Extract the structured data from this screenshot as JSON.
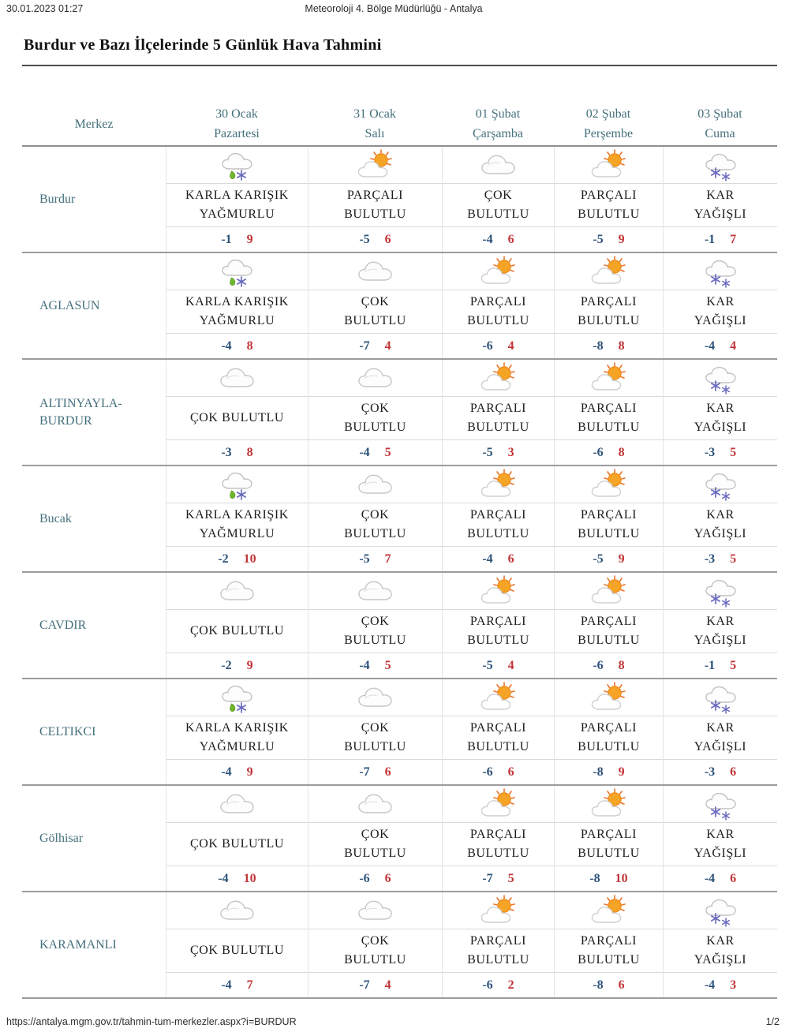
{
  "print_header": {
    "datetime": "30.01.2023 01:27",
    "doc_title": "Meteoroloji 4. Bölge Müdürlüğü - Antalya"
  },
  "page_title": "Burdur ve Bazı İlçelerinde 5 Günlük Hava Tahmini",
  "table": {
    "merkez_header": "Merkez",
    "day_headers": [
      {
        "date": "30 Ocak",
        "day": "Pazartesi"
      },
      {
        "date": "31 Ocak",
        "day": "Salı"
      },
      {
        "date": "01 Şubat",
        "day": "Çarşamba"
      },
      {
        "date": "02 Şubat",
        "day": "Perşembe"
      },
      {
        "date": "03 Şubat",
        "day": "Cuma"
      }
    ],
    "rows": [
      {
        "merkez": "Burdur",
        "cells": [
          {
            "icon": "sleet-icon",
            "condition": "KARLA KARIŞIK YAĞMURLU",
            "min": "-1",
            "max": "9"
          },
          {
            "icon": "partly-cloudy-icon",
            "condition": "PARÇALI BULUTLU",
            "min": "-5",
            "max": "6"
          },
          {
            "icon": "cloudy-icon",
            "condition": "ÇOK BULUTLU",
            "min": "-4",
            "max": "6"
          },
          {
            "icon": "partly-cloudy-icon",
            "condition": "PARÇALI BULUTLU",
            "min": "-5",
            "max": "9"
          },
          {
            "icon": "snow-icon",
            "condition": "KAR YAĞIŞLI",
            "min": "-1",
            "max": "7"
          }
        ]
      },
      {
        "merkez": "AGLASUN",
        "cells": [
          {
            "icon": "sleet-icon",
            "condition": "KARLA KARIŞIK YAĞMURLU",
            "min": "-4",
            "max": "8"
          },
          {
            "icon": "cloudy-icon",
            "condition": "ÇOK BULUTLU",
            "min": "-7",
            "max": "4"
          },
          {
            "icon": "partly-cloudy-icon",
            "condition": "PARÇALI BULUTLU",
            "min": "-6",
            "max": "4"
          },
          {
            "icon": "partly-cloudy-icon",
            "condition": "PARÇALI BULUTLU",
            "min": "-8",
            "max": "8"
          },
          {
            "icon": "snow-icon",
            "condition": "KAR YAĞIŞLI",
            "min": "-4",
            "max": "4"
          }
        ]
      },
      {
        "merkez": "ALTINYAYLA-BURDUR",
        "cells": [
          {
            "icon": "cloudy-icon",
            "condition": "ÇOK BULUTLU",
            "min": "-3",
            "max": "8"
          },
          {
            "icon": "cloudy-icon",
            "condition": "ÇOK BULUTLU",
            "min": "-4",
            "max": "5"
          },
          {
            "icon": "partly-cloudy-icon",
            "condition": "PARÇALI BULUTLU",
            "min": "-5",
            "max": "3"
          },
          {
            "icon": "partly-cloudy-icon",
            "condition": "PARÇALI BULUTLU",
            "min": "-6",
            "max": "8"
          },
          {
            "icon": "snow-icon",
            "condition": "KAR YAĞIŞLI",
            "min": "-3",
            "max": "5"
          }
        ]
      },
      {
        "merkez": "Bucak",
        "cells": [
          {
            "icon": "sleet-icon",
            "condition": "KARLA KARIŞIK YAĞMURLU",
            "min": "-2",
            "max": "10"
          },
          {
            "icon": "cloudy-icon",
            "condition": "ÇOK BULUTLU",
            "min": "-5",
            "max": "7"
          },
          {
            "icon": "partly-cloudy-icon",
            "condition": "PARÇALI BULUTLU",
            "min": "-4",
            "max": "6"
          },
          {
            "icon": "partly-cloudy-icon",
            "condition": "PARÇALI BULUTLU",
            "min": "-5",
            "max": "9"
          },
          {
            "icon": "snow-icon",
            "condition": "KAR YAĞIŞLI",
            "min": "-3",
            "max": "5"
          }
        ]
      },
      {
        "merkez": "CAVDIR",
        "cells": [
          {
            "icon": "cloudy-icon",
            "condition": "ÇOK BULUTLU",
            "min": "-2",
            "max": "9"
          },
          {
            "icon": "cloudy-icon",
            "condition": "ÇOK BULUTLU",
            "min": "-4",
            "max": "5"
          },
          {
            "icon": "partly-cloudy-icon",
            "condition": "PARÇALI BULUTLU",
            "min": "-5",
            "max": "4"
          },
          {
            "icon": "partly-cloudy-icon",
            "condition": "PARÇALI BULUTLU",
            "min": "-6",
            "max": "8"
          },
          {
            "icon": "snow-icon",
            "condition": "KAR YAĞIŞLI",
            "min": "-1",
            "max": "5"
          }
        ]
      },
      {
        "merkez": "CELTIKCI",
        "cells": [
          {
            "icon": "sleet-icon",
            "condition": "KARLA KARIŞIK YAĞMURLU",
            "min": "-4",
            "max": "9"
          },
          {
            "icon": "cloudy-icon",
            "condition": "ÇOK BULUTLU",
            "min": "-7",
            "max": "6"
          },
          {
            "icon": "partly-cloudy-icon",
            "condition": "PARÇALI BULUTLU",
            "min": "-6",
            "max": "6"
          },
          {
            "icon": "partly-cloudy-icon",
            "condition": "PARÇALI BULUTLU",
            "min": "-8",
            "max": "9"
          },
          {
            "icon": "snow-icon",
            "condition": "KAR YAĞIŞLI",
            "min": "-3",
            "max": "6"
          }
        ]
      },
      {
        "merkez": "Gölhisar",
        "cells": [
          {
            "icon": "cloudy-icon",
            "condition": "ÇOK BULUTLU",
            "min": "-4",
            "max": "10"
          },
          {
            "icon": "cloudy-icon",
            "condition": "ÇOK BULUTLU",
            "min": "-6",
            "max": "6"
          },
          {
            "icon": "partly-cloudy-icon",
            "condition": "PARÇALI BULUTLU",
            "min": "-7",
            "max": "5"
          },
          {
            "icon": "partly-cloudy-icon",
            "condition": "PARÇALI BULUTLU",
            "min": "-8",
            "max": "10"
          },
          {
            "icon": "snow-icon",
            "condition": "KAR YAĞIŞLI",
            "min": "-4",
            "max": "6"
          }
        ]
      },
      {
        "merkez": "KARAMANLI",
        "cells": [
          {
            "icon": "cloudy-icon",
            "condition": "ÇOK BULUTLU",
            "min": "-4",
            "max": "7"
          },
          {
            "icon": "cloudy-icon",
            "condition": "ÇOK BULUTLU",
            "min": "-7",
            "max": "4"
          },
          {
            "icon": "partly-cloudy-icon",
            "condition": "PARÇALI BULUTLU",
            "min": "-6",
            "max": "2"
          },
          {
            "icon": "partly-cloudy-icon",
            "condition": "PARÇALI BULUTLU",
            "min": "-8",
            "max": "6"
          },
          {
            "icon": "snow-icon",
            "condition": "KAR YAĞIŞLI",
            "min": "-4",
            "max": "3"
          }
        ]
      }
    ]
  },
  "footer": {
    "url": "https://antalya.mgm.gov.tr/tahmin-tum-merkezler.aspx?i=BURDUR",
    "page_indicator": "1/2"
  },
  "colors": {
    "header_text": "#45707c",
    "city_text": "#45707c",
    "min_temp": "#2d5379",
    "max_temp": "#c23437",
    "condition_text": "#1c1c1c",
    "sun": "#f6a425",
    "sun_rays": "#e8742c",
    "snowflake": "#6a6ac0",
    "raindrop": "#72b62e",
    "cloud_outline": "#c6c6c6"
  }
}
